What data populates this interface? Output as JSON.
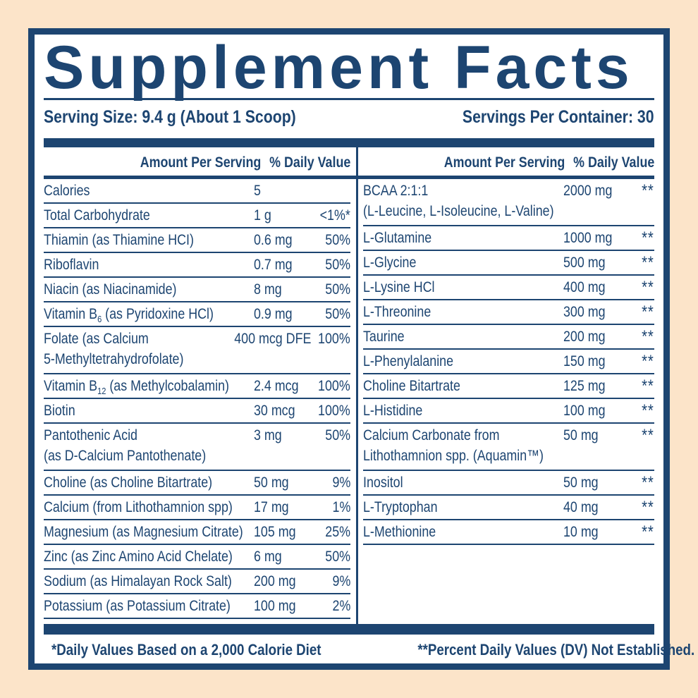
{
  "label": {
    "title": "Supplement Facts",
    "serving_size": "Serving Size: 9.4 g (About 1 Scoop)",
    "servings_per_container": "Servings Per Container: 30",
    "column_header": {
      "amount": "Amount Per Serving",
      "dv": "% Daily Value"
    },
    "left_rows": [
      {
        "name": "Calories",
        "amount": "5",
        "dv": ""
      },
      {
        "name": "Total Carbohydrate",
        "amount": "1 g",
        "dv": "<1%*"
      },
      {
        "name": "Thiamin (as Thiamine HCI)",
        "amount": "0.6 mg",
        "dv": "50%"
      },
      {
        "name": "Riboflavin",
        "amount": "0.7 mg",
        "dv": "50%"
      },
      {
        "name": "Niacin (as Niacinamide)",
        "amount": "8 mg",
        "dv": "50%"
      },
      {
        "name_parts": [
          {
            "t": "Vitamin B"
          },
          {
            "s": "6"
          },
          {
            "t": " (as Pyridoxine HCl)"
          }
        ],
        "amount": "0.9 mg",
        "dv": "50%"
      },
      {
        "name": "Folate (as Calcium",
        "name2": "5-Methyltetrahydrofolate)",
        "amount": "400 mcg DFE",
        "dv": "100%",
        "amount_right": true
      },
      {
        "name_parts": [
          {
            "t": "Vitamin B"
          },
          {
            "s": "12"
          },
          {
            "t": " (as Methylcobalamin)"
          }
        ],
        "amount": "2.4 mcg",
        "dv": "100%"
      },
      {
        "name": "Biotin",
        "amount": "30 mcg",
        "dv": "100%"
      },
      {
        "name": "Pantothenic Acid",
        "name2": "(as D-Calcium Pantothenate)",
        "amount": "3 mg",
        "dv": "50%"
      },
      {
        "name": "Choline (as Choline Bitartrate)",
        "amount": "50 mg",
        "dv": "9%"
      },
      {
        "name": "Calcium (from Lithothamnion spp)",
        "amount": "17 mg",
        "dv": "1%"
      },
      {
        "name": "Magnesium (as Magnesium Citrate)",
        "amount": "105 mg",
        "dv": "25%"
      },
      {
        "name": "Zinc (as Zinc Amino Acid Chelate)",
        "amount": "6 mg",
        "dv": "50%"
      },
      {
        "name": "Sodium (as Himalayan Rock Salt)",
        "amount": "200 mg",
        "dv": "9%"
      },
      {
        "name": "Potassium (as Potassium Citrate)",
        "amount": "100 mg",
        "dv": "2%"
      }
    ],
    "right_rows": [
      {
        "name": "BCAA 2:1:1",
        "name2": "(L-Leucine, L-Isoleucine, L-Valine)",
        "amount": "2000 mg",
        "dv": "**"
      },
      {
        "name": "L-Glutamine",
        "amount": "1000 mg",
        "dv": "**"
      },
      {
        "name": "L-Glycine",
        "amount": "500 mg",
        "dv": "**"
      },
      {
        "name": "L-Lysine HCl",
        "amount": "400 mg",
        "dv": "**"
      },
      {
        "name": "L-Threonine",
        "amount": "300 mg",
        "dv": "**"
      },
      {
        "name": "Taurine",
        "amount": "200 mg",
        "dv": "**"
      },
      {
        "name": "L-Phenylalanine",
        "amount": "150 mg",
        "dv": "**"
      },
      {
        "name": "Choline Bitartrate",
        "amount": "125 mg",
        "dv": "**"
      },
      {
        "name": "L-Histidine",
        "amount": "100 mg",
        "dv": "**"
      },
      {
        "name": "Calcium Carbonate from",
        "name2": "Lithothamnion spp. (Aquamin™)",
        "amount": "50 mg",
        "dv": "**"
      },
      {
        "name": "Inositol",
        "amount": "50 mg",
        "dv": "**"
      },
      {
        "name": "L-Tryptophan",
        "amount": "40 mg",
        "dv": "**"
      },
      {
        "name": "L-Methionine",
        "amount": "10 mg",
        "dv": "**"
      }
    ],
    "footnotes": {
      "daily_values": "*Daily Values Based on a 2,000 Calorie Diet",
      "not_established": "**Percent Daily Values (DV) Not Established."
    },
    "colors": {
      "navy": "#1d4571",
      "peach": "#fce4c9",
      "card": "#ffffff"
    }
  }
}
